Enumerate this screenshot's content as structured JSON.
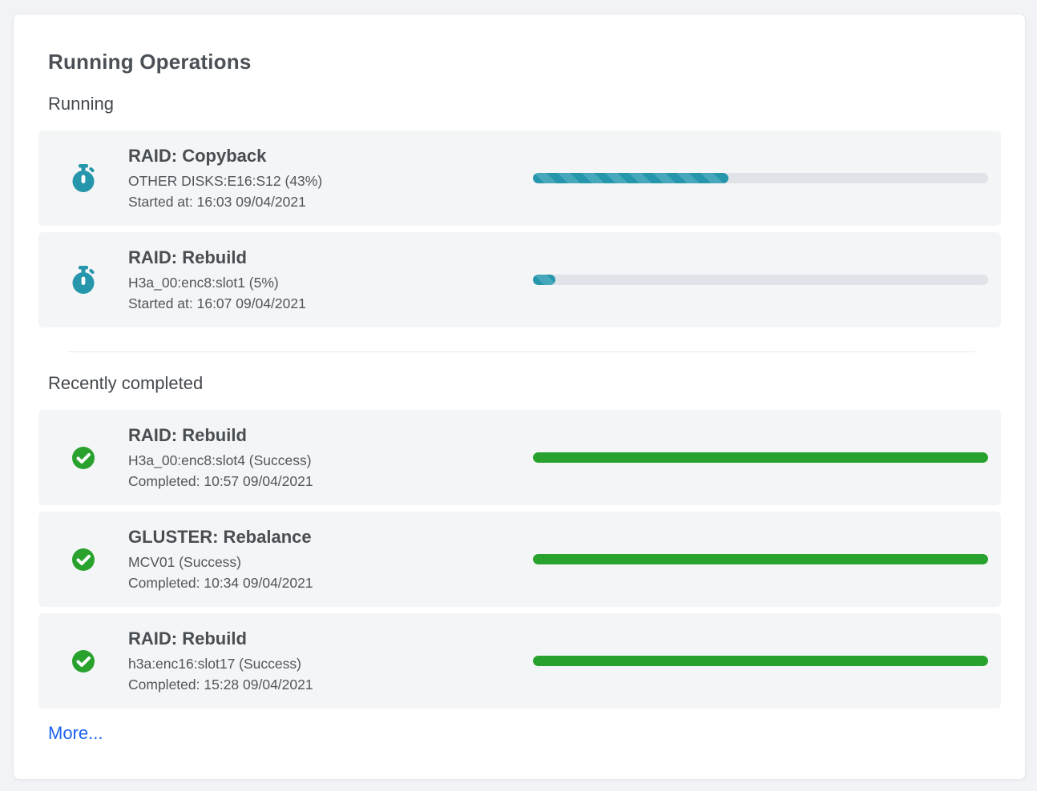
{
  "panel": {
    "title": "Running Operations",
    "more_label": "More..."
  },
  "sections": {
    "running": {
      "heading": "Running",
      "items": [
        {
          "title": "RAID: Copyback",
          "target": "OTHER DISKS:E16:S12 (43%)",
          "timestamp": "Started at: 16:03 09/04/2021",
          "progress_percent": 43,
          "status": "running",
          "icon": "stopwatch-icon"
        },
        {
          "title": "RAID: Rebuild",
          "target": "H3a_00:enc8:slot1 (5%)",
          "timestamp": "Started at: 16:07 09/04/2021",
          "progress_percent": 5,
          "status": "running",
          "icon": "stopwatch-icon"
        }
      ]
    },
    "completed": {
      "heading": "Recently completed",
      "items": [
        {
          "title": "RAID: Rebuild",
          "target": "H3a_00:enc8:slot4 (Success)",
          "timestamp": "Completed: 10:57 09/04/2021",
          "progress_percent": 100,
          "status": "success",
          "icon": "check-circle-icon"
        },
        {
          "title": "GLUSTER: Rebalance",
          "target": "MCV01 (Success)",
          "timestamp": "Completed: 10:34 09/04/2021",
          "progress_percent": 100,
          "status": "success",
          "icon": "check-circle-icon"
        },
        {
          "title": "RAID: Rebuild",
          "target": "h3a:enc16:slot17 (Success)",
          "timestamp": "Completed: 15:28 09/04/2021",
          "progress_percent": 100,
          "status": "success",
          "icon": "check-circle-icon"
        }
      ]
    }
  },
  "colors": {
    "running_fill": "#2596ab",
    "running_stripe": "#47a8bb",
    "success_fill": "#28a22d",
    "track": "#e0e3e8",
    "link": "#1b63f2"
  }
}
